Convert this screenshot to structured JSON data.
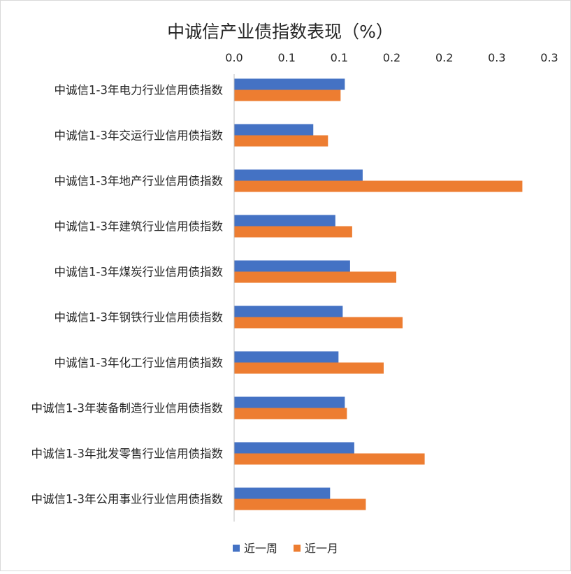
{
  "colors": {
    "series_week": "#4472C4",
    "series_month": "#ED7D31",
    "axis": "#bfbfbf",
    "text": "#262626"
  },
  "chart_data": {
    "type": "bar",
    "orientation": "horizontal",
    "title": "中诚信产业债指数表现（%）",
    "categories": [
      "中诚信1-3年电力行业信用债指数",
      "中诚信1-3年交运行业信用债指数",
      "中诚信1-3年地产行业信用债指数",
      "中诚信1-3年建筑行业信用债指数",
      "中诚信1-3年煤炭行业信用债指数",
      "中诚信1-3年钢铁行业信用债指数",
      "中诚信1-3年化工行业信用债指数",
      "中诚信1-3年装备制造行业信用债指数",
      "中诚信1-3年批发零售行业信用债指数",
      "中诚信1-3年公用事业行业信用债指数"
    ],
    "series": [
      {
        "name": "近一周",
        "values": [
          0.105,
          0.075,
          0.122,
          0.096,
          0.11,
          0.103,
          0.099,
          0.105,
          0.114,
          0.091
        ]
      },
      {
        "name": "近一月",
        "values": [
          0.101,
          0.089,
          0.274,
          0.112,
          0.154,
          0.16,
          0.142,
          0.107,
          0.181,
          0.125
        ]
      }
    ],
    "xlim": [
      0,
      0.3
    ],
    "x_ticks": [
      0,
      0.05,
      0.1,
      0.15,
      0.2,
      0.25,
      0.3
    ],
    "x_tick_labels": [
      "0.0",
      "0.1",
      "0.1",
      "0.2",
      "0.2",
      "0.3",
      "0.3"
    ],
    "x_axis_position": "top",
    "grid": false,
    "legend": "bottom"
  }
}
